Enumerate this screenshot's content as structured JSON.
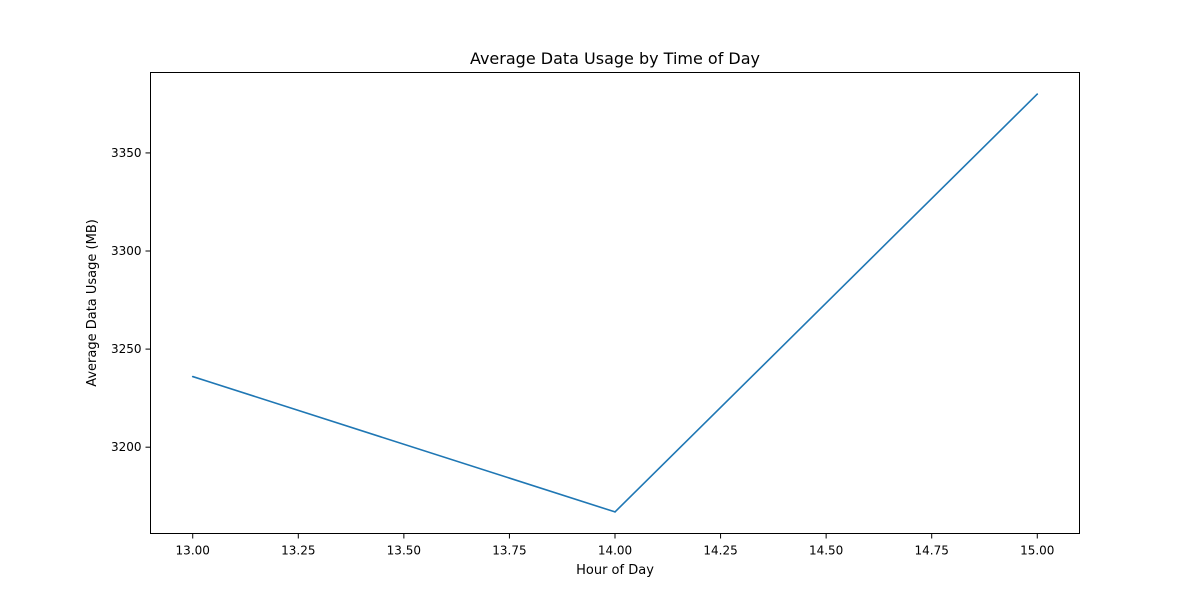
{
  "chart_data": {
    "type": "line",
    "title": "Average Data Usage by Time of Day",
    "xlabel": "Hour of Day",
    "ylabel": "Average Data Usage (MB)",
    "xlim": [
      12.9,
      15.1
    ],
    "ylim": [
      3156,
      3391
    ],
    "x_ticks": [
      13.0,
      13.25,
      13.5,
      13.75,
      14.0,
      14.25,
      14.5,
      14.75,
      15.0
    ],
    "x_tick_labels": [
      "13.00",
      "13.25",
      "13.50",
      "13.75",
      "14.00",
      "14.25",
      "14.50",
      "14.75",
      "15.00"
    ],
    "y_ticks": [
      3200,
      3250,
      3300,
      3350
    ],
    "y_tick_labels": [
      "3200",
      "3250",
      "3300",
      "3350"
    ],
    "grid": false,
    "series": [
      {
        "x": [
          13,
          14,
          15
        ],
        "y": [
          3236,
          3167,
          3380
        ],
        "color": "#1f77b4"
      }
    ]
  }
}
